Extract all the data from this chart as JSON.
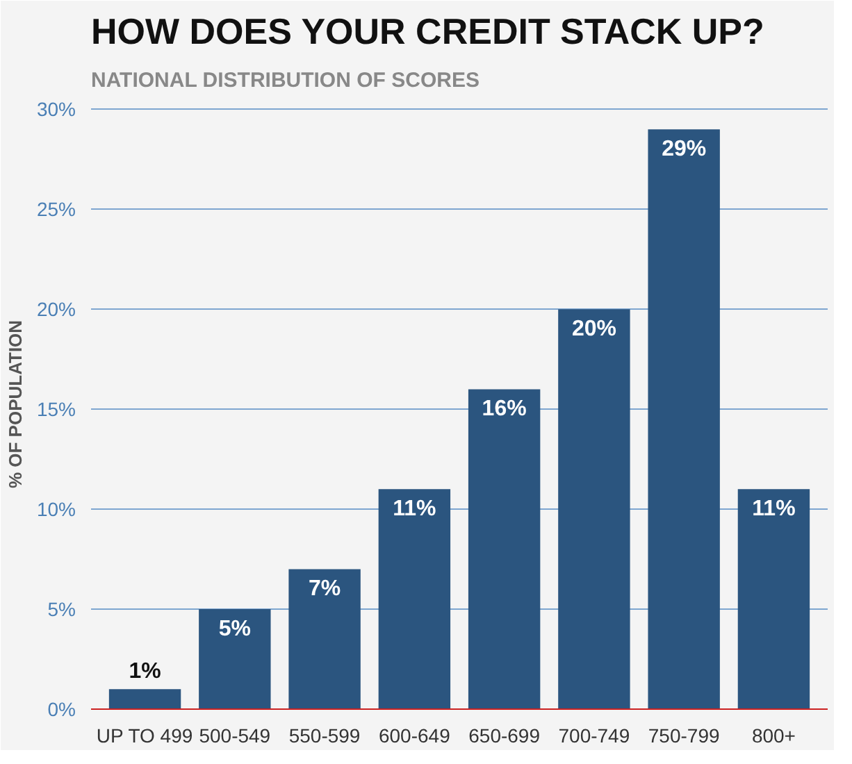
{
  "chart_data": {
    "type": "bar",
    "title": "HOW DOES YOUR CREDIT STACK UP?",
    "subtitle": "NATIONAL DISTRIBUTION OF SCORES",
    "ylabel": "% OF POPULATION",
    "categories": [
      "UP TO 499",
      "500-549",
      "550-599",
      "600-649",
      "650-699",
      "700-749",
      "750-799",
      "800+"
    ],
    "values": [
      1,
      5,
      7,
      11,
      16,
      20,
      29,
      11
    ],
    "value_labels": [
      "1%",
      "5%",
      "7%",
      "11%",
      "16%",
      "20%",
      "29%",
      "11%"
    ],
    "color": "#2b557f",
    "ylim": [
      0,
      30.5
    ],
    "yticks": [
      {
        "value": 0,
        "label": "0%"
      },
      {
        "value": 5,
        "label": "5%"
      },
      {
        "value": 10,
        "label": "10%"
      },
      {
        "value": 15,
        "label": "15%"
      },
      {
        "value": 20,
        "label": "20%"
      },
      {
        "value": 25,
        "label": "25%"
      },
      {
        "value": 30,
        "label": "30%"
      }
    ],
    "grid": "y"
  }
}
